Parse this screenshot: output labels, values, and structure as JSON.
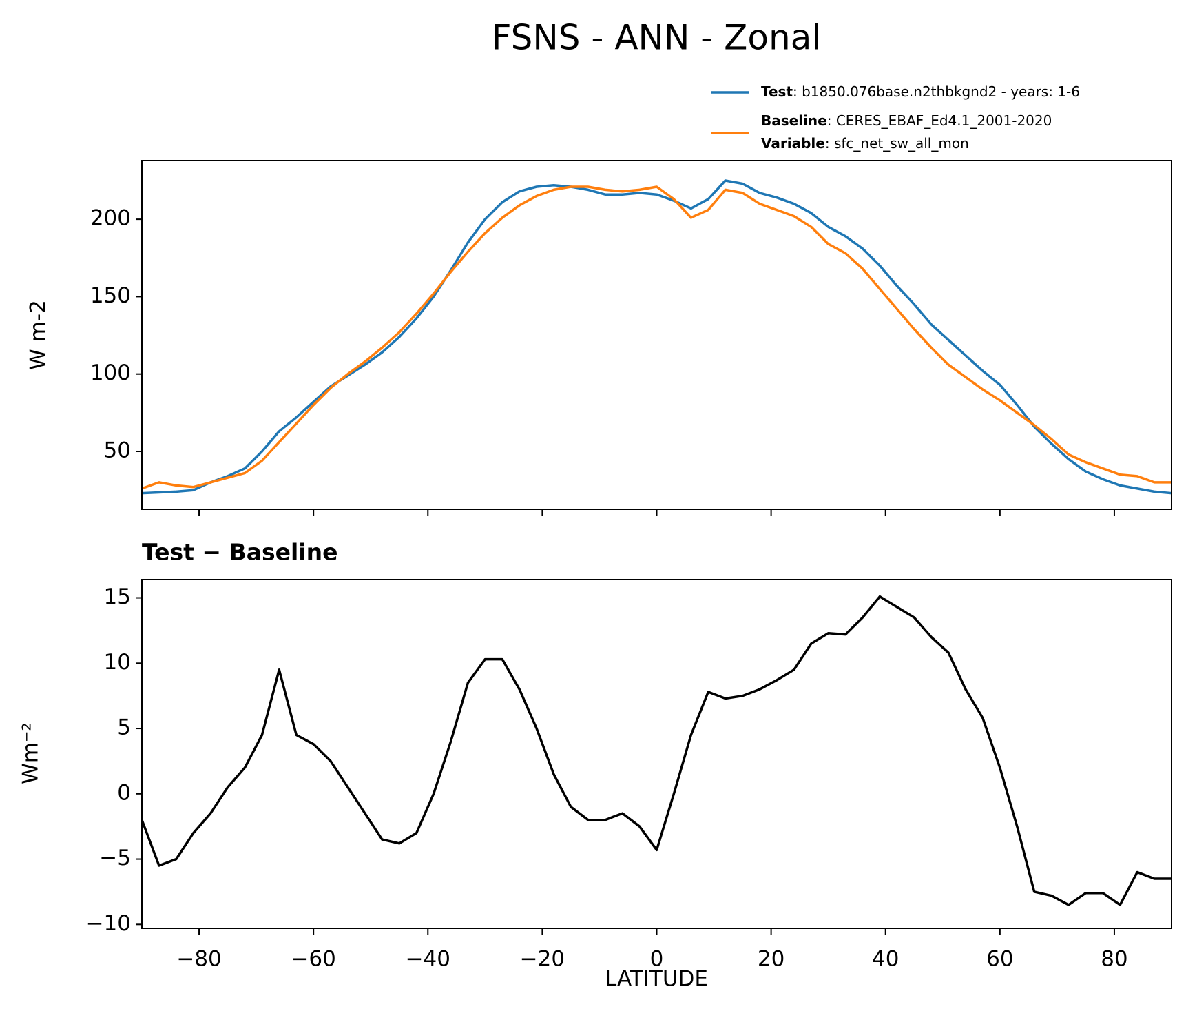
{
  "chart_data": [
    {
      "type": "line",
      "title": "FSNS - ANN - Zonal",
      "ylabel": "W m-2",
      "x": [
        -90,
        -87,
        -84,
        -81,
        -78,
        -75,
        -72,
        -69,
        -66,
        -63,
        -60,
        -57,
        -54,
        -51,
        -48,
        -45,
        -42,
        -39,
        -36,
        -33,
        -30,
        -27,
        -24,
        -21,
        -18,
        -15,
        -12,
        -9,
        -6,
        -3,
        0,
        3,
        6,
        9,
        12,
        15,
        18,
        21,
        24,
        27,
        30,
        33,
        36,
        39,
        42,
        45,
        48,
        51,
        54,
        57,
        60,
        63,
        66,
        69,
        72,
        75,
        78,
        81,
        84,
        87,
        90
      ],
      "xlim": [
        -90,
        90
      ],
      "xticks": [
        -80,
        -60,
        -40,
        -20,
        0,
        20,
        40,
        60,
        80
      ],
      "ylim": [
        12.6,
        237.9
      ],
      "yticks": [
        50,
        100,
        150,
        200
      ],
      "series": [
        {
          "name": "Test",
          "label": ": b1850.076base.n2thbkgnd2 - years: 1-6",
          "color": "#1f77b4",
          "values": [
            23,
            23.5,
            24,
            25,
            30,
            34,
            39,
            50,
            63,
            72,
            82,
            92,
            99,
            106,
            114,
            124,
            136,
            150,
            167,
            185,
            200,
            211,
            218,
            221,
            222,
            221,
            219,
            216,
            216,
            217,
            216,
            212,
            207,
            213,
            225,
            223,
            217,
            214,
            210,
            204,
            195,
            189,
            181,
            170,
            157,
            145,
            132,
            122,
            112,
            102,
            93,
            80,
            66,
            55,
            45,
            37,
            32,
            28,
            26,
            24,
            23
          ]
        },
        {
          "name": "Baseline",
          "label": ": CERES_EBAF_Ed4.1_2001-2020",
          "color": "#ff7f0e",
          "values": [
            26,
            30,
            28,
            27,
            30,
            33,
            36,
            44,
            56,
            68,
            80,
            91,
            100,
            108,
            117,
            127,
            139,
            152,
            166,
            179,
            191,
            201,
            209,
            215,
            219,
            221,
            221,
            219,
            218,
            219,
            221,
            213,
            201,
            206,
            219,
            217,
            210,
            206,
            202,
            195,
            184,
            178,
            168,
            155,
            142,
            129,
            117,
            106,
            98,
            90,
            83,
            75,
            67,
            58,
            48,
            43,
            39,
            35,
            34,
            30,
            30
          ]
        }
      ],
      "legend_extra": {
        "name": "Variable",
        "label": ": sfc_net_sw_all_mon"
      }
    },
    {
      "type": "line",
      "title": "Test − Baseline",
      "ylabel": "Wm⁻²",
      "xlabel": "LATITUDE",
      "x": [
        -90,
        -87,
        -84,
        -81,
        -78,
        -75,
        -72,
        -69,
        -66,
        -63,
        -60,
        -57,
        -54,
        -51,
        -48,
        -45,
        -42,
        -39,
        -36,
        -33,
        -30,
        -27,
        -24,
        -21,
        -18,
        -15,
        -12,
        -9,
        -6,
        -3,
        0,
        3,
        6,
        9,
        12,
        15,
        18,
        21,
        24,
        27,
        30,
        33,
        36,
        39,
        42,
        45,
        48,
        51,
        54,
        57,
        60,
        63,
        66,
        69,
        72,
        75,
        78,
        81,
        84,
        87,
        90
      ],
      "xlim": [
        -90,
        90
      ],
      "xticks": [
        {
          "value": -80,
          "label": "−80"
        },
        {
          "value": -60,
          "label": "−60"
        },
        {
          "value": -40,
          "label": "−40"
        },
        {
          "value": -20,
          "label": "−20"
        },
        0,
        20,
        40,
        60,
        80
      ],
      "ylim": [
        -10.3,
        16.4
      ],
      "yticks": [
        {
          "value": -10,
          "label": "−10"
        },
        {
          "value": -5,
          "label": "−5"
        },
        0,
        5,
        10,
        15
      ],
      "series": [
        {
          "color": "#000000",
          "values": [
            -2,
            -5.5,
            -5,
            -3,
            -1.5,
            0.5,
            2,
            4.5,
            9.5,
            4.5,
            3.8,
            2.5,
            0.5,
            -1.5,
            -3.5,
            -3.8,
            -3,
            0,
            4,
            8.5,
            10.3,
            10.3,
            8,
            5,
            1.5,
            -1,
            -2,
            -2,
            -1.5,
            -2.5,
            -4.3,
            0,
            4.5,
            7.8,
            7.3,
            7.5,
            8,
            8.7,
            9.5,
            11.5,
            12.3,
            12.2,
            13.5,
            15.1,
            14.3,
            13.5,
            12,
            10.8,
            8,
            5.8,
            2,
            -2.5,
            -7.5,
            -7.8,
            -8.5,
            -7.6,
            -7.6,
            -8.5,
            -6,
            -6.5,
            -6.5
          ]
        }
      ]
    }
  ]
}
